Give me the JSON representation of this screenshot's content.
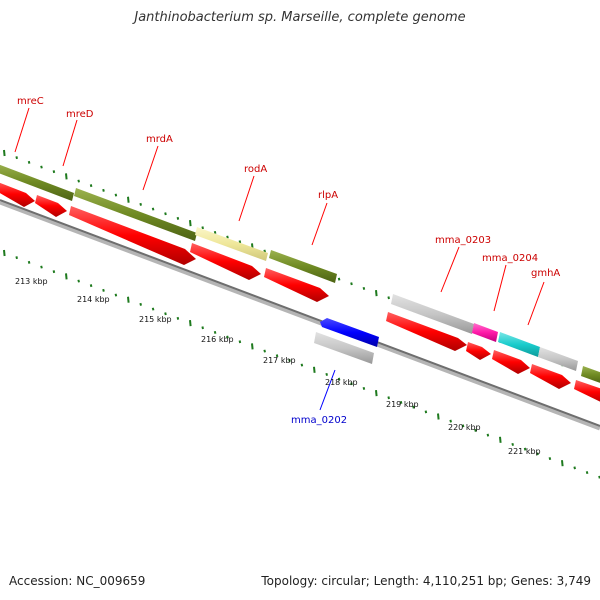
{
  "title": "Janthinobacterium sp. Marseille, complete genome",
  "footer": {
    "accession": "Accession: NC_009659",
    "summary": "Topology: circular; Length: 4,110,251 bp; Genes: 3,749"
  },
  "colors": {
    "cds_forward": "#ff0000",
    "gene_olive": "#6f8a23",
    "gene_khaki": "#efe79a",
    "gene_grey": "#c6c6c6",
    "gene_magenta": "#ff1aa8",
    "gene_cyan": "#19cccc",
    "cds_reverse": "#0000ff",
    "backbone": "#808080",
    "tick": "#1e7a1e",
    "label_forward": "#cc0000",
    "label_reverse": "#0000cc"
  },
  "scale_labels": [
    "213 kbp",
    "214 kbp",
    "215 kbp",
    "216 kbp",
    "217 kbp",
    "218 kbp",
    "219 kbp",
    "220 kbp",
    "221 kbp"
  ],
  "gene_labels": {
    "mreC": "mreC",
    "mreD": "mreD",
    "mrdA": "mrdA",
    "rodA": "rodA",
    "rlpA": "rlpA",
    "mma_0203": "mma_0203",
    "mma_0204": "mma_0204",
    "gmhA": "gmhA",
    "mma_0202": "mma_0202"
  }
}
